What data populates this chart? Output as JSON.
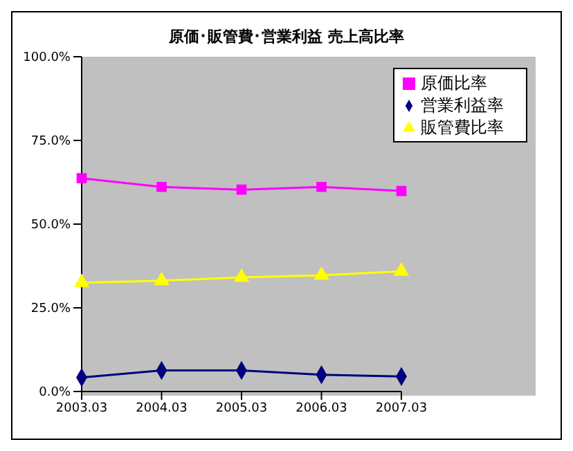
{
  "chart_data": {
    "type": "line",
    "title": "原価･販管費･営業利益 売上高比率",
    "categories": [
      "2003.03",
      "2004.03",
      "2005.03",
      "2006.03",
      "2007.03"
    ],
    "series": [
      {
        "name": "営業利益率",
        "color": "#000080",
        "marker": "diamond",
        "values": [
          4.2,
          6.3,
          6.3,
          5.0,
          4.5
        ]
      },
      {
        "name": "原価比率",
        "color": "#ff00ff",
        "marker": "square",
        "values": [
          63.7,
          61.1,
          60.3,
          61.1,
          59.9
        ]
      },
      {
        "name": "販管費比率",
        "color": "#ffff00",
        "marker": "triangle",
        "values": [
          32.5,
          33.1,
          34.1,
          34.7,
          35.9
        ]
      }
    ],
    "ylim": [
      0,
      100
    ],
    "yticks": [
      {
        "value": 0,
        "label": "0.0%"
      },
      {
        "value": 25,
        "label": "25.0%"
      },
      {
        "value": 50,
        "label": "50.0%"
      },
      {
        "value": 75,
        "label": "75.0%"
      },
      {
        "value": 100,
        "label": "100.0%"
      }
    ],
    "grid": false,
    "legend": "top right",
    "line_style": "solid"
  }
}
